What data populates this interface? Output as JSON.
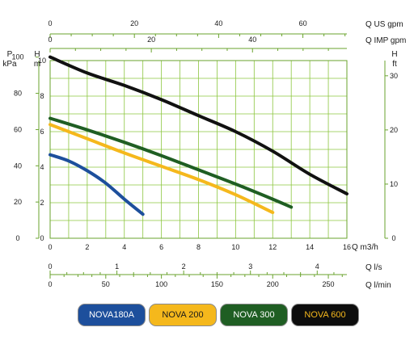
{
  "chart_data": {
    "type": "line",
    "title": "",
    "x": {
      "label": "Q m3/h",
      "min": 0,
      "max": 16,
      "ticks": [
        0,
        2,
        4,
        6,
        8,
        10,
        12,
        14,
        16
      ]
    },
    "y_left_h": {
      "label": "H",
      "unit": "m",
      "min": 0,
      "max": 10,
      "ticks": [
        0,
        2,
        4,
        6,
        8,
        10
      ]
    },
    "y_left_p": {
      "label": "P",
      "unit": "kPa",
      "ticks": [
        0,
        20,
        40,
        60,
        80,
        100
      ]
    },
    "y_right_h": {
      "label": "H",
      "unit": "ft",
      "ticks": [
        0,
        10,
        20,
        30
      ]
    },
    "top_axes": [
      {
        "label": "Q US gpm",
        "ticks": [
          0,
          20,
          40,
          60
        ]
      },
      {
        "label": "Q IMP gpm",
        "ticks": [
          0,
          20,
          40
        ]
      }
    ],
    "bottom_axes": [
      {
        "label": "Q l/s",
        "ticks": [
          0,
          1,
          2,
          3,
          4
        ]
      },
      {
        "label": "Q l/min",
        "ticks": [
          0,
          50,
          100,
          150,
          200,
          250
        ]
      }
    ],
    "grid": true,
    "legend_position": "bottom",
    "series": [
      {
        "name": "NOVA180A",
        "color": "#1d4f9c",
        "points": [
          [
            0,
            4.7
          ],
          [
            1,
            4.35
          ],
          [
            2,
            3.8
          ],
          [
            3,
            3.1
          ],
          [
            4,
            2.2
          ],
          [
            5,
            1.35
          ]
        ]
      },
      {
        "name": "NOVA 200",
        "color": "#f5b81c",
        "points": [
          [
            0,
            6.4
          ],
          [
            2,
            5.6
          ],
          [
            4,
            4.8
          ],
          [
            6,
            4.05
          ],
          [
            8,
            3.3
          ],
          [
            10,
            2.45
          ],
          [
            12,
            1.45
          ]
        ]
      },
      {
        "name": "NOVA 300",
        "color": "#1f5e23",
        "points": [
          [
            0,
            6.75
          ],
          [
            2,
            6.1
          ],
          [
            4,
            5.4
          ],
          [
            6,
            4.65
          ],
          [
            8,
            3.85
          ],
          [
            10,
            3.05
          ],
          [
            12,
            2.2
          ],
          [
            13,
            1.75
          ]
        ]
      },
      {
        "name": "NOVA 600",
        "color": "#111111",
        "points": [
          [
            0,
            10.2
          ],
          [
            2,
            9.3
          ],
          [
            4,
            8.6
          ],
          [
            6,
            7.8
          ],
          [
            8,
            6.9
          ],
          [
            10,
            6.0
          ],
          [
            12,
            4.9
          ],
          [
            14,
            3.6
          ],
          [
            16,
            2.5
          ]
        ]
      }
    ]
  },
  "legend_items": [
    {
      "name": "NOVA180A",
      "bg": "#1d4f9c",
      "fg": "#ffffff"
    },
    {
      "name": "NOVA 200",
      "bg": "#f5b81c",
      "fg": "#1a1a1a"
    },
    {
      "name": "NOVA 300",
      "bg": "#1f5e23",
      "fg": "#ffffff"
    },
    {
      "name": "NOVA 600",
      "bg": "#0d0d0d",
      "fg": "#f5b81c"
    }
  ],
  "colors": {
    "grid": "#8cc63f",
    "axis": "#6aa32e"
  }
}
